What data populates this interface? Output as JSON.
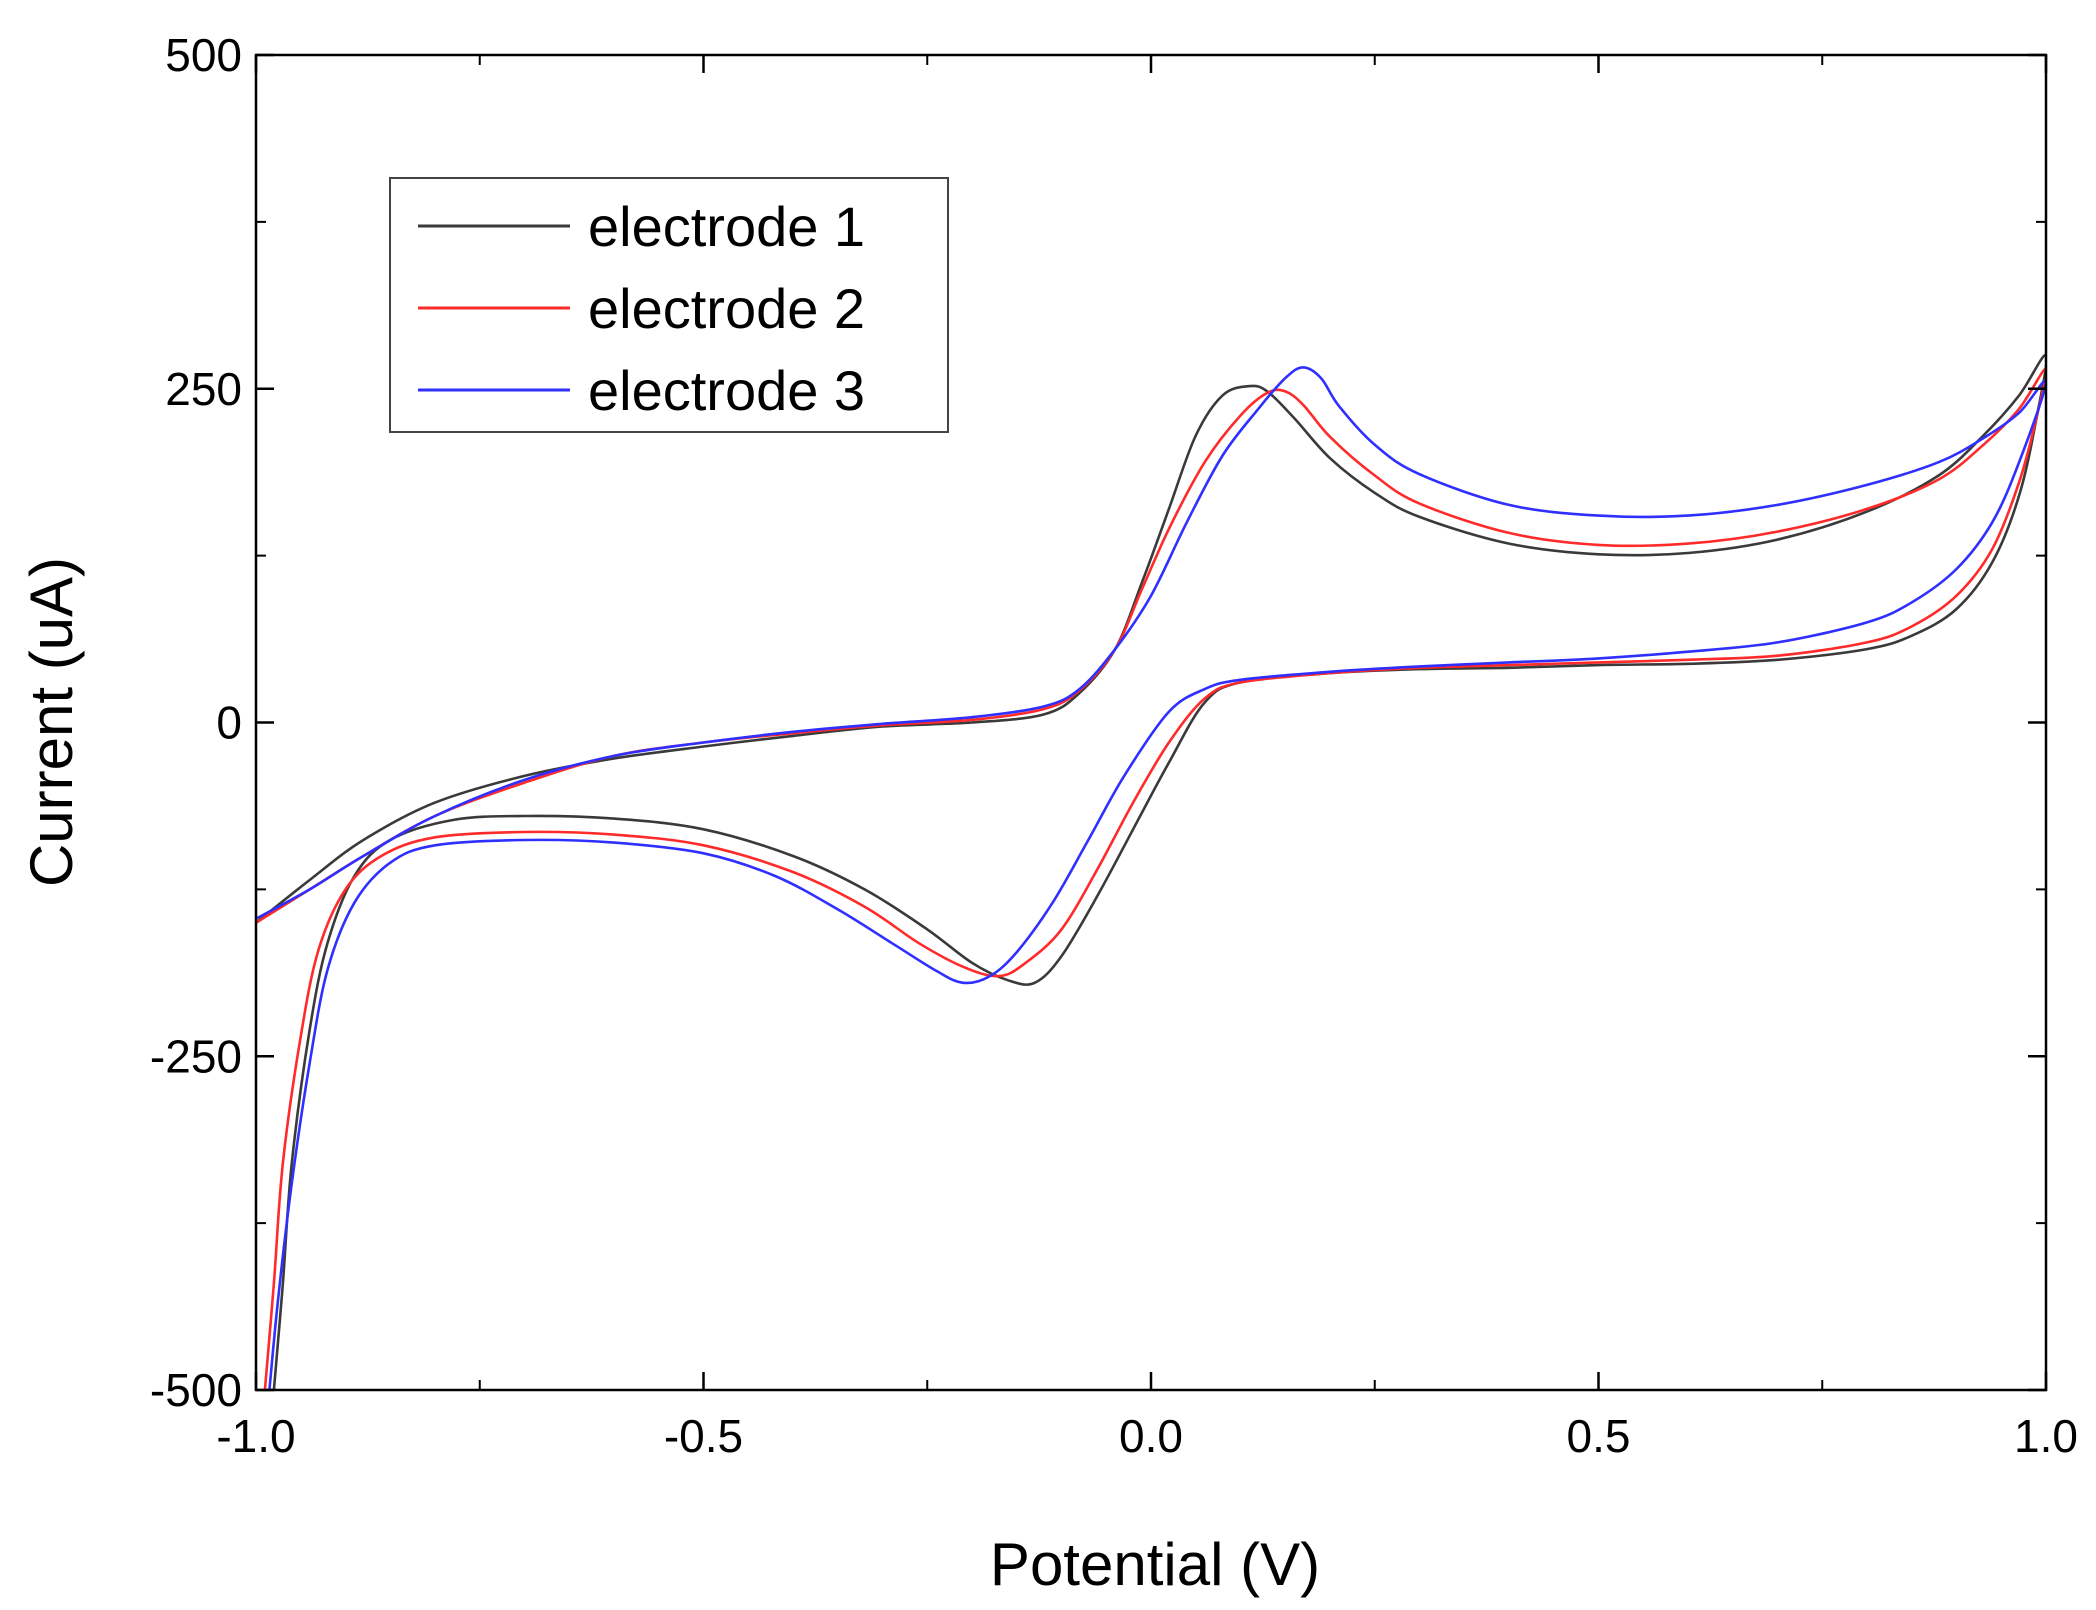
{
  "chart_data": {
    "type": "line",
    "title": "",
    "xlabel": "Potential (V)",
    "ylabel": "Current (uA)",
    "xlim": [
      -1.0,
      1.0
    ],
    "ylim": [
      -500,
      500
    ],
    "x_ticks": [
      -1.0,
      -0.5,
      0.0,
      0.5,
      1.0
    ],
    "x_tick_labels": [
      "-1.0",
      "-0.5",
      "0.0",
      "0.5",
      "1.0"
    ],
    "y_ticks": [
      -500,
      -250,
      0,
      250,
      500
    ],
    "y_tick_labels": [
      "-500",
      "-250",
      "0",
      "250",
      "500"
    ],
    "grid": false,
    "legend_position": "top-left",
    "series": [
      {
        "name": "electrode 1",
        "color": "#3a3a3a",
        "points": [
          [
            -0.98,
            -500
          ],
          [
            -0.97,
            -420
          ],
          [
            -0.96,
            -330
          ],
          [
            -0.94,
            -230
          ],
          [
            -0.92,
            -165
          ],
          [
            -0.89,
            -115
          ],
          [
            -0.85,
            -88
          ],
          [
            -0.78,
            -73
          ],
          [
            -0.7,
            -70
          ],
          [
            -0.6,
            -72
          ],
          [
            -0.5,
            -80
          ],
          [
            -0.4,
            -100
          ],
          [
            -0.32,
            -125
          ],
          [
            -0.25,
            -155
          ],
          [
            -0.2,
            -180
          ],
          [
            -0.16,
            -193
          ],
          [
            -0.13,
            -195
          ],
          [
            -0.1,
            -175
          ],
          [
            -0.06,
            -130
          ],
          [
            -0.02,
            -80
          ],
          [
            0.02,
            -30
          ],
          [
            0.06,
            15
          ],
          [
            0.1,
            30
          ],
          [
            0.2,
            37
          ],
          [
            0.3,
            40
          ],
          [
            0.4,
            41
          ],
          [
            0.5,
            43
          ],
          [
            0.6,
            44
          ],
          [
            0.7,
            47
          ],
          [
            0.8,
            55
          ],
          [
            0.85,
            65
          ],
          [
            0.9,
            85
          ],
          [
            0.94,
            120
          ],
          [
            0.97,
            170
          ],
          [
            0.99,
            230
          ],
          [
            1.0,
            275
          ],
          [
            0.97,
            245
          ],
          [
            0.93,
            215
          ],
          [
            0.88,
            185
          ],
          [
            0.8,
            158
          ],
          [
            0.7,
            137
          ],
          [
            0.6,
            127
          ],
          [
            0.5,
            126
          ],
          [
            0.4,
            134
          ],
          [
            0.3,
            154
          ],
          [
            0.25,
            172
          ],
          [
            0.2,
            198
          ],
          [
            0.16,
            228
          ],
          [
            0.13,
            248
          ],
          [
            0.11,
            252
          ],
          [
            0.08,
            245
          ],
          [
            0.05,
            215
          ],
          [
            0.02,
            160
          ],
          [
            -0.01,
            105
          ],
          [
            -0.04,
            55
          ],
          [
            -0.08,
            22
          ],
          [
            -0.12,
            6
          ],
          [
            -0.2,
            0
          ],
          [
            -0.3,
            -3
          ],
          [
            -0.4,
            -10
          ],
          [
            -0.5,
            -18
          ],
          [
            -0.6,
            -27
          ],
          [
            -0.7,
            -40
          ],
          [
            -0.8,
            -60
          ],
          [
            -0.88,
            -88
          ],
          [
            -0.94,
            -118
          ],
          [
            -1.0,
            -150
          ]
        ]
      },
      {
        "name": "electrode 2",
        "color": "#ff2a2a",
        "points": [
          [
            -0.99,
            -500
          ],
          [
            -0.98,
            -420
          ],
          [
            -0.97,
            -330
          ],
          [
            -0.95,
            -235
          ],
          [
            -0.93,
            -170
          ],
          [
            -0.9,
            -125
          ],
          [
            -0.86,
            -100
          ],
          [
            -0.8,
            -86
          ],
          [
            -0.7,
            -82
          ],
          [
            -0.6,
            -84
          ],
          [
            -0.5,
            -92
          ],
          [
            -0.4,
            -112
          ],
          [
            -0.32,
            -138
          ],
          [
            -0.26,
            -165
          ],
          [
            -0.21,
            -183
          ],
          [
            -0.17,
            -190
          ],
          [
            -0.14,
            -180
          ],
          [
            -0.1,
            -155
          ],
          [
            -0.06,
            -110
          ],
          [
            -0.02,
            -60
          ],
          [
            0.02,
            -15
          ],
          [
            0.06,
            18
          ],
          [
            0.1,
            30
          ],
          [
            0.2,
            37
          ],
          [
            0.3,
            41
          ],
          [
            0.4,
            43
          ],
          [
            0.5,
            45
          ],
          [
            0.6,
            47
          ],
          [
            0.7,
            50
          ],
          [
            0.8,
            60
          ],
          [
            0.85,
            72
          ],
          [
            0.9,
            95
          ],
          [
            0.94,
            130
          ],
          [
            0.97,
            180
          ],
          [
            0.99,
            230
          ],
          [
            1.0,
            265
          ],
          [
            0.97,
            235
          ],
          [
            0.93,
            208
          ],
          [
            0.88,
            182
          ],
          [
            0.8,
            160
          ],
          [
            0.7,
            143
          ],
          [
            0.6,
            134
          ],
          [
            0.5,
            133
          ],
          [
            0.4,
            142
          ],
          [
            0.3,
            164
          ],
          [
            0.25,
            185
          ],
          [
            0.2,
            214
          ],
          [
            0.17,
            238
          ],
          [
            0.15,
            248
          ],
          [
            0.13,
            247
          ],
          [
            0.1,
            230
          ],
          [
            0.06,
            195
          ],
          [
            0.02,
            145
          ],
          [
            -0.01,
            100
          ],
          [
            -0.04,
            55
          ],
          [
            -0.08,
            24
          ],
          [
            -0.12,
            10
          ],
          [
            -0.2,
            2
          ],
          [
            -0.3,
            -2
          ],
          [
            -0.4,
            -8
          ],
          [
            -0.5,
            -15
          ],
          [
            -0.6,
            -25
          ],
          [
            -0.7,
            -45
          ],
          [
            -0.8,
            -70
          ],
          [
            -0.88,
            -100
          ],
          [
            -0.94,
            -125
          ],
          [
            -1.0,
            -150
          ]
        ]
      },
      {
        "name": "electrode 3",
        "color": "#2f2fff",
        "points": [
          [
            -0.985,
            -500
          ],
          [
            -0.975,
            -430
          ],
          [
            -0.96,
            -345
          ],
          [
            -0.94,
            -255
          ],
          [
            -0.92,
            -185
          ],
          [
            -0.89,
            -135
          ],
          [
            -0.85,
            -105
          ],
          [
            -0.8,
            -92
          ],
          [
            -0.7,
            -88
          ],
          [
            -0.6,
            -90
          ],
          [
            -0.5,
            -98
          ],
          [
            -0.42,
            -115
          ],
          [
            -0.35,
            -140
          ],
          [
            -0.29,
            -165
          ],
          [
            -0.24,
            -186
          ],
          [
            -0.21,
            -195
          ],
          [
            -0.18,
            -190
          ],
          [
            -0.15,
            -172
          ],
          [
            -0.11,
            -135
          ],
          [
            -0.07,
            -88
          ],
          [
            -0.03,
            -40
          ],
          [
            0.02,
            8
          ],
          [
            0.06,
            25
          ],
          [
            0.1,
            32
          ],
          [
            0.2,
            38
          ],
          [
            0.3,
            42
          ],
          [
            0.4,
            45
          ],
          [
            0.5,
            48
          ],
          [
            0.6,
            53
          ],
          [
            0.7,
            60
          ],
          [
            0.8,
            75
          ],
          [
            0.85,
            90
          ],
          [
            0.9,
            115
          ],
          [
            0.94,
            150
          ],
          [
            0.97,
            195
          ],
          [
            1.0,
            255
          ],
          [
            0.97,
            232
          ],
          [
            0.93,
            213
          ],
          [
            0.88,
            195
          ],
          [
            0.8,
            178
          ],
          [
            0.7,
            163
          ],
          [
            0.6,
            155
          ],
          [
            0.5,
            155
          ],
          [
            0.4,
            163
          ],
          [
            0.3,
            186
          ],
          [
            0.25,
            208
          ],
          [
            0.21,
            237
          ],
          [
            0.19,
            258
          ],
          [
            0.17,
            266
          ],
          [
            0.15,
            258
          ],
          [
            0.12,
            235
          ],
          [
            0.08,
            200
          ],
          [
            0.04,
            150
          ],
          [
            0.0,
            95
          ],
          [
            -0.04,
            55
          ],
          [
            -0.08,
            25
          ],
          [
            -0.12,
            12
          ],
          [
            -0.2,
            4
          ],
          [
            -0.3,
            -1
          ],
          [
            -0.4,
            -7
          ],
          [
            -0.5,
            -15
          ],
          [
            -0.6,
            -25
          ],
          [
            -0.7,
            -43
          ],
          [
            -0.8,
            -70
          ],
          [
            -0.88,
            -100
          ],
          [
            -0.94,
            -125
          ],
          [
            -1.0,
            -147
          ]
        ]
      }
    ]
  }
}
